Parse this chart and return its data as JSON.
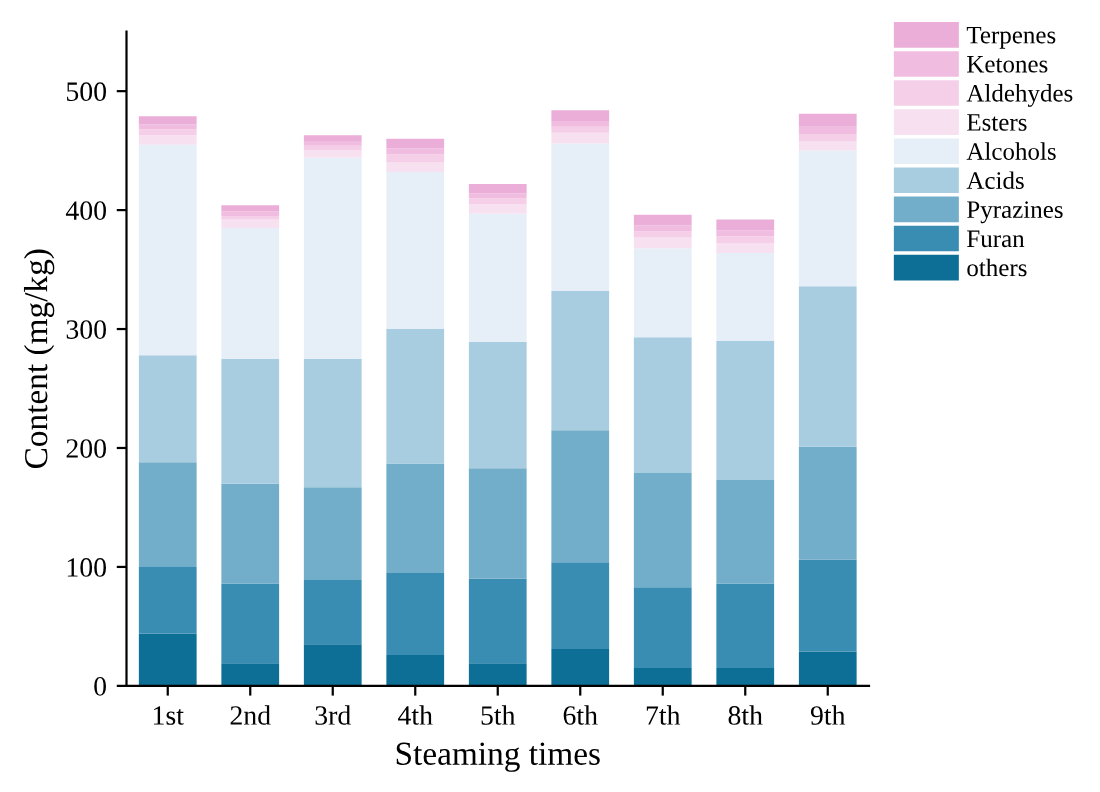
{
  "chart_data": {
    "type": "bar",
    "stacked": true,
    "xlabel": "Steaming times",
    "ylabel": "Content (mg/kg)",
    "categories": [
      "1st",
      "2nd",
      "3rd",
      "4th",
      "5th",
      "6th",
      "7th",
      "8th",
      "9th"
    ],
    "series": [
      {
        "name": "others",
        "color": "#0d6f96",
        "values": [
          44,
          19,
          35,
          26,
          19,
          31,
          15,
          15,
          29
        ]
      },
      {
        "name": "Furan",
        "color": "#3a8db2",
        "values": [
          56,
          67,
          54,
          69,
          71,
          73,
          68,
          71,
          77
        ]
      },
      {
        "name": "Pyrazines",
        "color": "#72adc9",
        "values": [
          88,
          84,
          78,
          92,
          93,
          111,
          96,
          87,
          95
        ]
      },
      {
        "name": "Acids",
        "color": "#a9cde0",
        "values": [
          90,
          105,
          108,
          113,
          106,
          117,
          114,
          117,
          135
        ]
      },
      {
        "name": "Alcohols",
        "color": "#e6eff7",
        "values": [
          177,
          110,
          169,
          132,
          108,
          124,
          75,
          74,
          114
        ]
      },
      {
        "name": "Esters",
        "color": "#f7e0f0",
        "values": [
          8,
          7,
          6,
          8,
          8,
          9,
          9,
          8,
          8
        ]
      },
      {
        "name": "Aldehydes",
        "color": "#f5cfe8",
        "values": [
          5,
          3,
          4,
          7,
          5,
          5,
          5,
          6,
          6
        ]
      },
      {
        "name": "Ketones",
        "color": "#f0bde0",
        "values": [
          4,
          4,
          4,
          5,
          4,
          5,
          5,
          5,
          6
        ]
      },
      {
        "name": "Terpenes",
        "color": "#eaaed9",
        "values": [
          7,
          5,
          5,
          8,
          8,
          9,
          9,
          9,
          11
        ]
      }
    ],
    "ylim": [
      0,
      550
    ],
    "yticks": [
      0,
      100,
      200,
      300,
      400,
      500
    ],
    "grid": false,
    "legend": "top right"
  }
}
